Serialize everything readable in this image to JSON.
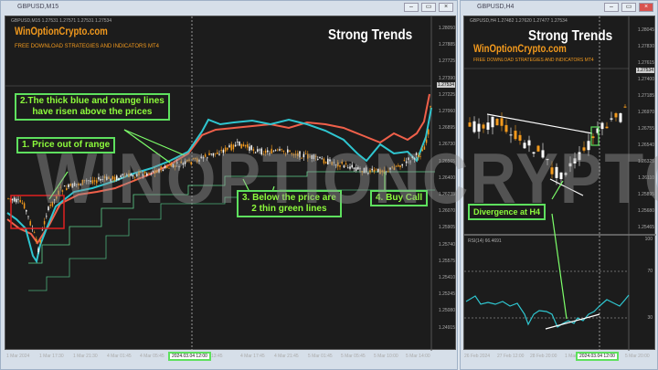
{
  "left_window": {
    "title": "GBPUSD,M15",
    "info": "GBPUSD,M15  1.27531 1.27571 1.27531 1.27534",
    "brand": "WinOptionCrypto.com",
    "tagline": "FREE DOWNLOAD STRATEGIES AND INDICATORS MT4",
    "heading": "Strong Trends",
    "price_labels": [
      "1.28050",
      "1.27885",
      "1.27725",
      "1.27534",
      "1.27390",
      "1.27225",
      "1.27060",
      "1.26895",
      "1.26730",
      "1.26565",
      "1.26400",
      "1.26235",
      "1.26070",
      "1.25905",
      "1.25740",
      "1.25575",
      "1.25410",
      "1.25245",
      "1.25080",
      "1.24915"
    ],
    "current_price": "1.27534",
    "time_labels": [
      "1 Mar 2024",
      "1 Mar 17:30",
      "1 Mar 21:30",
      "4 Mar 01:45",
      "4 Mar 05:45",
      "13:45",
      "4 Mar 17:45",
      "4 Mar 21:45",
      "5 Mar 01:45",
      "5 Mar 05:45",
      "5 Mar 10:00",
      "5 Mar 14:00"
    ],
    "cursor_time": "2024.03.04 12:00",
    "notes": {
      "n1": "1. Price out of range",
      "n2a": "2.The thick blue and orange lines",
      "n2b": "have risen above the prices",
      "n3a": "3. Below the price are",
      "n3b": "2 thin green lines",
      "n4": "4. Buy Call"
    }
  },
  "right_window": {
    "title": "GBPUSD,H4",
    "info": "GBPUSD,H4  1.27482 1.27620 1.27477 1.27534",
    "brand": "WinOptionCrypto.com",
    "tagline": "FREE DOWNLOAD STRATEGIES AND INDICATORS MT4",
    "heading": "Strong Trends",
    "price_labels": [
      "1.28045",
      "1.27830",
      "1.27615",
      "1.27534",
      "1.27400",
      "1.27185",
      "1.26970",
      "1.26755",
      "1.26540",
      "1.26325",
      "1.26110",
      "1.25895",
      "1.25680",
      "1.25465"
    ],
    "current_price": "1.27534",
    "rsi_label": "RSI(14) 66.4691",
    "rsi_levels": [
      "100",
      "70",
      "30"
    ],
    "time_labels": [
      "26 Feb 2024",
      "27 Feb 12:00",
      "28 Feb 20:00",
      "1 Mar",
      "5 Mar 20:00"
    ],
    "cursor_time": "2024.03.04 12:00",
    "note": "Divergence at H4"
  },
  "watermark": "WINOPTIONCRYPTO.COM",
  "colors": {
    "bull": "#ffffff",
    "bear": "#f39a1d",
    "blue_line": "#2fc6d0",
    "orange_line": "#f0604a",
    "green_line": "#5fcf8a",
    "note": "#8dfc3c"
  }
}
